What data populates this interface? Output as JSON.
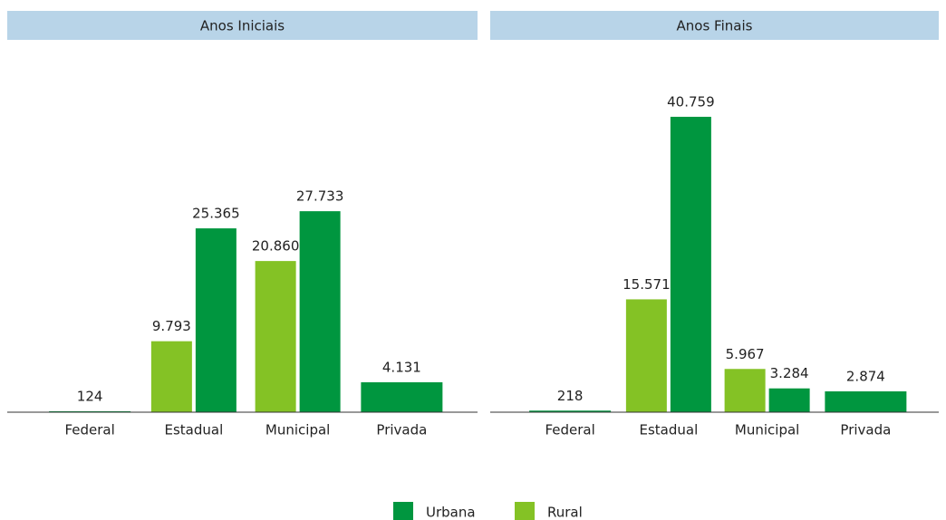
{
  "chart_data": [
    {
      "type": "bar",
      "title": "Anos Iniciais",
      "categories": [
        "Federal",
        "Estadual",
        "Municipal",
        "Privada"
      ],
      "series": [
        {
          "name": "Urbana",
          "color": "#00963f",
          "values": [
            124,
            25365,
            27733,
            4131
          ],
          "value_labels": [
            "124",
            "25.365",
            "27.733",
            "4.131"
          ]
        },
        {
          "name": "Rural",
          "color": "#84c225",
          "values": [
            null,
            9793,
            20860,
            null
          ],
          "value_labels": [
            null,
            "9.793",
            "20.860",
            null
          ]
        }
      ],
      "ylim": [
        0,
        45000
      ]
    },
    {
      "type": "bar",
      "title": "Anos Finais",
      "categories": [
        "Federal",
        "Estadual",
        "Municipal",
        "Privada"
      ],
      "series": [
        {
          "name": "Urbana",
          "color": "#00963f",
          "values": [
            218,
            40759,
            3284,
            2874
          ],
          "value_labels": [
            "218",
            "40.759",
            "3.284",
            "2.874"
          ]
        },
        {
          "name": "Rural",
          "color": "#84c225",
          "values": [
            null,
            15571,
            5967,
            null
          ],
          "value_labels": [
            null,
            "15.571",
            "5.967",
            null
          ]
        }
      ],
      "ylim": [
        0,
        45000
      ]
    }
  ]
}
